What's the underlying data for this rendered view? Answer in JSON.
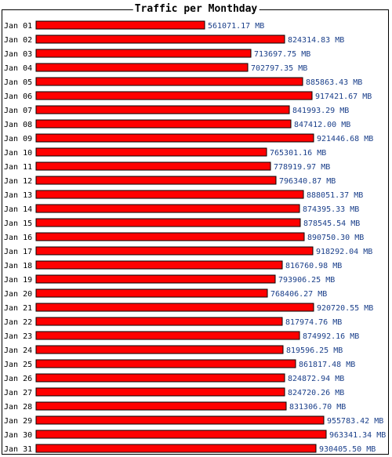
{
  "chart_data": {
    "type": "bar",
    "orientation": "horizontal",
    "title": "Traffic per Monthday",
    "unit": "MB",
    "categories": [
      "Jan 01",
      "Jan 02",
      "Jan 03",
      "Jan 04",
      "Jan 05",
      "Jan 06",
      "Jan 07",
      "Jan 08",
      "Jan 09",
      "Jan 10",
      "Jan 11",
      "Jan 12",
      "Jan 13",
      "Jan 14",
      "Jan 15",
      "Jan 16",
      "Jan 17",
      "Jan 18",
      "Jan 19",
      "Jan 20",
      "Jan 21",
      "Jan 22",
      "Jan 23",
      "Jan 24",
      "Jan 25",
      "Jan 26",
      "Jan 27",
      "Jan 28",
      "Jan 29",
      "Jan 30",
      "Jan 31"
    ],
    "values": [
      561071.17,
      824314.83,
      713697.75,
      702797.35,
      885863.43,
      917421.67,
      841993.29,
      847412.0,
      921446.68,
      765301.16,
      778919.97,
      796340.87,
      888051.37,
      874395.33,
      878545.54,
      890750.3,
      918292.04,
      816760.98,
      793906.25,
      768406.27,
      920720.55,
      817974.76,
      874992.16,
      819596.25,
      861817.48,
      824872.94,
      824720.26,
      831306.7,
      955783.42,
      963341.34,
      930405.5
    ],
    "value_labels": [
      "561071.17 MB",
      "824314.83 MB",
      "713697.75 MB",
      "702797.35 MB",
      "885863.43 MB",
      "917421.67 MB",
      "841993.29 MB",
      "847412.00 MB",
      "921446.68 MB",
      "765301.16 MB",
      "778919.97 MB",
      "796340.87 MB",
      "888051.37 MB",
      "874395.33 MB",
      "878545.54 MB",
      "890750.30 MB",
      "918292.04 MB",
      "816760.98 MB",
      "793906.25 MB",
      "768406.27 MB",
      "920720.55 MB",
      "817974.76 MB",
      "874992.16 MB",
      "819596.25 MB",
      "861817.48 MB",
      "824872.94 MB",
      "824720.26 MB",
      "831306.70 MB",
      "955783.42 MB",
      "963341.34 MB",
      "930405.50 MB"
    ],
    "bar_color": "#ff0000",
    "bar_border_color": "#000000",
    "value_label_color": "#1a3f8a",
    "grid": false,
    "legend": "none"
  }
}
